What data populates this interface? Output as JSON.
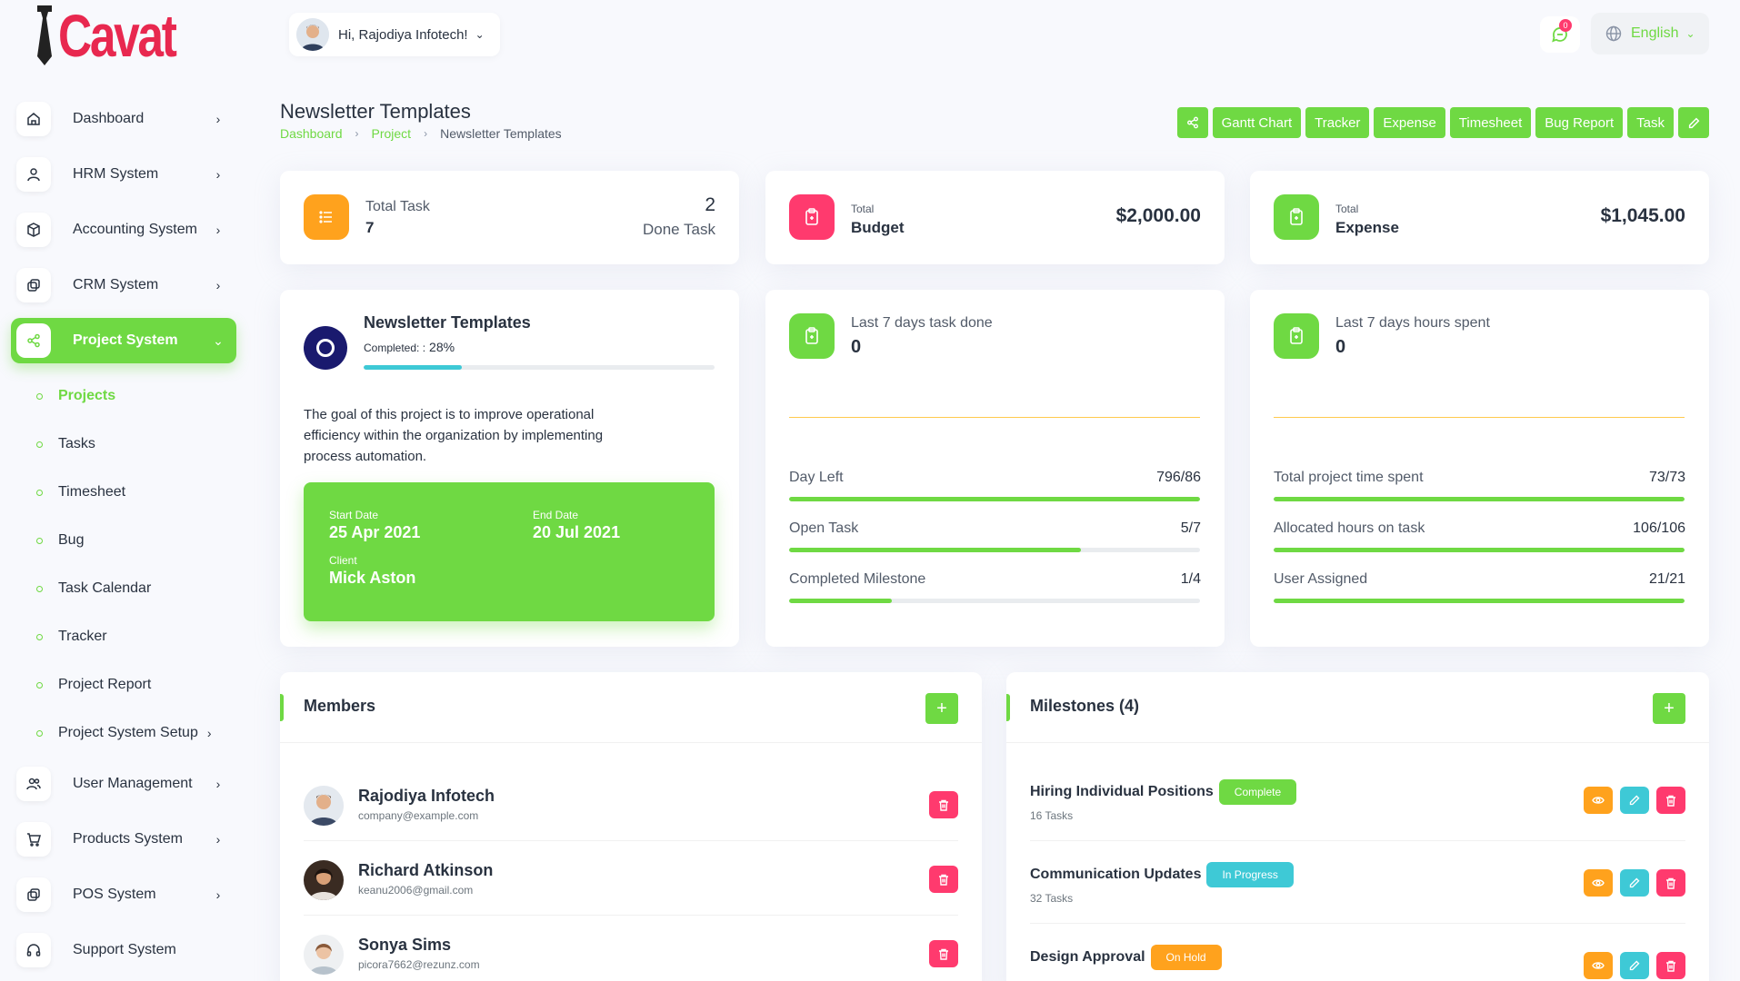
{
  "brand": {
    "logo_text": "Cavat"
  },
  "sidebar": {
    "items": [
      {
        "label": "Dashboard",
        "icon": "home-icon"
      },
      {
        "label": "HRM System",
        "icon": "user-icon"
      },
      {
        "label": "Accounting System",
        "icon": "box-icon"
      },
      {
        "label": "CRM System",
        "icon": "layers-icon"
      },
      {
        "label": "Project System",
        "icon": "share-icon",
        "active": true
      },
      {
        "label": "User Management",
        "icon": "users-icon"
      },
      {
        "label": "Products System",
        "icon": "cart-icon"
      },
      {
        "label": "POS System",
        "icon": "layers-icon"
      },
      {
        "label": "Support System",
        "icon": "headphones-icon"
      }
    ],
    "sub_items": [
      {
        "label": "Projects",
        "active": true
      },
      {
        "label": "Tasks"
      },
      {
        "label": "Timesheet"
      },
      {
        "label": "Bug"
      },
      {
        "label": "Task Calendar"
      },
      {
        "label": "Tracker"
      },
      {
        "label": "Project Report"
      },
      {
        "label": "Project System Setup"
      }
    ]
  },
  "header": {
    "greeting": "Hi, Rajodiya Infotech!",
    "notification_count": "0",
    "language": "English"
  },
  "page": {
    "title": "Newsletter Templates",
    "breadcrumb": [
      "Dashboard",
      "Project",
      "Newsletter Templates"
    ],
    "actions": [
      "Gantt Chart",
      "Tracker",
      "Expense",
      "Timesheet",
      "Bug Report",
      "Task"
    ]
  },
  "stats": {
    "total_task_label": "Total Task",
    "total_task_value": "7",
    "done_task_value": "2",
    "done_task_label": "Done Task",
    "budget_small": "Total",
    "budget_label": "Budget",
    "budget_value": "$2,000.00",
    "expense_small": "Total",
    "expense_label": "Expense",
    "expense_value": "$1,045.00"
  },
  "project": {
    "name": "Newsletter Templates",
    "completed_label": "Completed: :",
    "completed_value": "28%",
    "completed_fraction": 0.28,
    "description": "The goal of this project is to improve operational efficiency within the organization by implementing process automation.",
    "start_label": "Start Date",
    "start_value": "25 Apr 2021",
    "end_label": "End Date",
    "end_value": "20 Jul 2021",
    "client_label": "Client",
    "client_value": "Mick Aston"
  },
  "task_panel": {
    "title": "Last 7 days task done",
    "value": "0",
    "rows": [
      {
        "label": "Day Left",
        "value": "796/86",
        "fraction": 1.0
      },
      {
        "label": "Open Task",
        "value": "5/7",
        "fraction": 0.71
      },
      {
        "label": "Completed Milestone",
        "value": "1/4",
        "fraction": 0.25
      }
    ]
  },
  "hours_panel": {
    "title": "Last 7 days hours spent",
    "value": "0",
    "rows": [
      {
        "label": "Total project time spent",
        "value": "73/73",
        "fraction": 1.0
      },
      {
        "label": "Allocated hours on task",
        "value": "106/106",
        "fraction": 1.0
      },
      {
        "label": "User Assigned",
        "value": "21/21",
        "fraction": 1.0
      }
    ]
  },
  "members": {
    "title": "Members",
    "list": [
      {
        "name": "Rajodiya Infotech",
        "email": "company@example.com"
      },
      {
        "name": "Richard Atkinson",
        "email": "keanu2006@gmail.com"
      },
      {
        "name": "Sonya Sims",
        "email": "picora7662@rezunz.com"
      }
    ]
  },
  "milestones": {
    "title": "Milestones (4)",
    "list": [
      {
        "name": "Hiring Individual Positions",
        "status": "Complete",
        "status_color": "#6fd943",
        "tasks": "16 Tasks"
      },
      {
        "name": "Communication Updates",
        "status": "In Progress",
        "status_color": "#3ec9d6",
        "tasks": "32 Tasks"
      },
      {
        "name": "Design Approval",
        "status": "On Hold",
        "status_color": "#ffa21d",
        "tasks": ""
      }
    ]
  },
  "colors": {
    "primary": "#6fd943",
    "danger": "#ff3a6e",
    "warning": "#ffa21d",
    "info": "#3ec9d6"
  }
}
